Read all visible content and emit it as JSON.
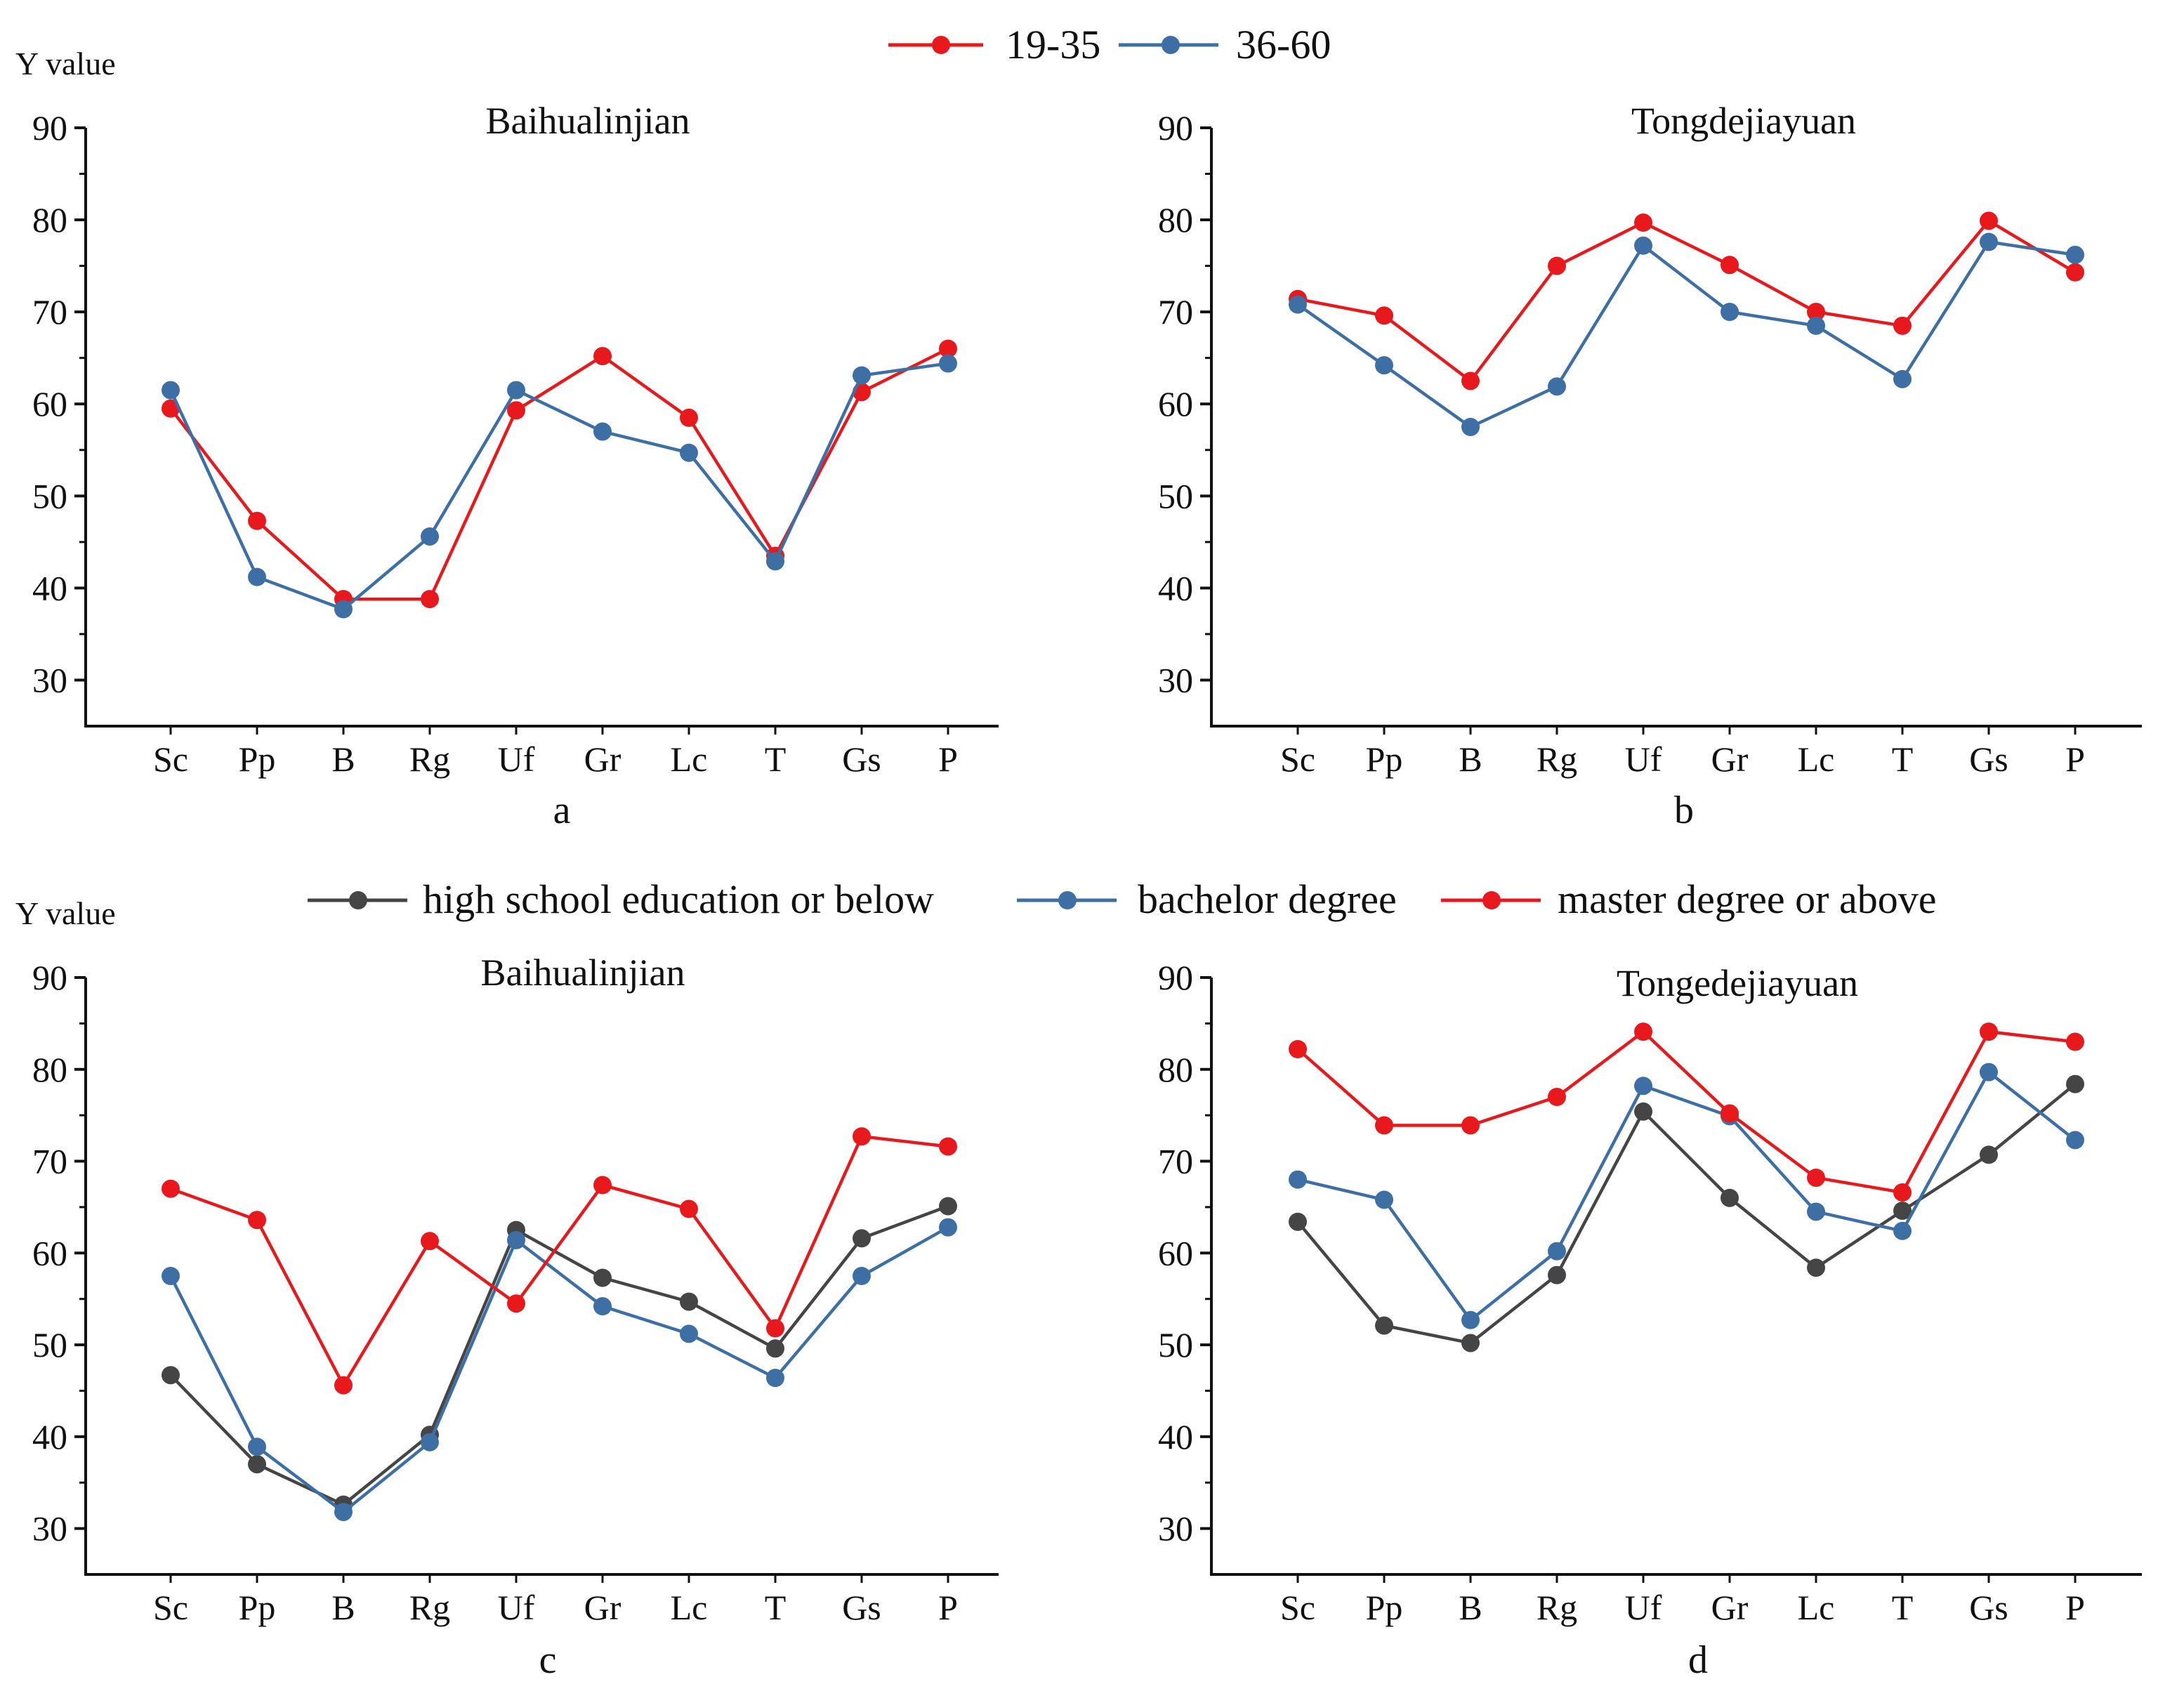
{
  "legends": [
    {
      "series_names": [
        "19-35",
        "36-60"
      ]
    },
    {
      "series_names": [
        "high school education or below",
        "bachelor degree",
        "master degree or above"
      ]
    }
  ],
  "y_axis_labels": [
    "Y value",
    "Y value"
  ],
  "colors": {
    "red": "#e8191d",
    "blue": "#3d6fa5",
    "dark": "#454545"
  },
  "chart_data": [
    {
      "type": "line",
      "title": "Baihualinjian",
      "panel_label": "a",
      "xlabel": "",
      "ylabel": "Y value",
      "ylim": [
        25,
        90
      ],
      "yticks": [
        30,
        40,
        50,
        60,
        70,
        80,
        90
      ],
      "categories": [
        "Sc",
        "Pp",
        "B",
        "Rg",
        "Uf",
        "Gr",
        "Lc",
        "T",
        "Gs",
        "P"
      ],
      "series": [
        {
          "name": "19-35",
          "color": "#e8191d",
          "values": [
            59.5,
            47.3,
            38.8,
            38.8,
            59.3,
            65.2,
            58.5,
            43.5,
            61.3,
            66.0
          ]
        },
        {
          "name": "36-60",
          "color": "#3d6fa5",
          "values": [
            61.5,
            41.2,
            37.7,
            45.6,
            61.5,
            57.0,
            54.7,
            42.9,
            63.1,
            64.4
          ]
        }
      ]
    },
    {
      "type": "line",
      "title": "Tongdejiayuan",
      "panel_label": "b",
      "xlabel": "",
      "ylabel": "",
      "ylim": [
        25,
        90
      ],
      "yticks": [
        30,
        40,
        50,
        60,
        70,
        80,
        90
      ],
      "categories": [
        "Sc",
        "Pp",
        "B",
        "Rg",
        "Uf",
        "Gr",
        "Lc",
        "T",
        "Gs",
        "P"
      ],
      "series": [
        {
          "name": "19-35",
          "color": "#e8191d",
          "values": [
            71.4,
            69.6,
            62.5,
            75.0,
            79.7,
            75.1,
            70.0,
            68.5,
            79.9,
            74.3
          ]
        },
        {
          "name": "36-60",
          "color": "#3d6fa5",
          "values": [
            70.8,
            64.2,
            57.5,
            61.9,
            77.2,
            70.0,
            68.5,
            62.7,
            77.6,
            76.2
          ]
        }
      ]
    },
    {
      "type": "line",
      "title": "Baihualinjian",
      "panel_label": "c",
      "xlabel": "",
      "ylabel": "Y value",
      "ylim": [
        25,
        90
      ],
      "yticks": [
        30,
        40,
        50,
        60,
        70,
        80,
        90
      ],
      "categories": [
        "Sc",
        "Pp",
        "B",
        "Rg",
        "Uf",
        "Gr",
        "Lc",
        "T",
        "Gs",
        "P"
      ],
      "series": [
        {
          "name": "high school education or below",
          "color": "#454545",
          "values": [
            46.7,
            37.0,
            32.6,
            40.2,
            62.5,
            57.3,
            54.7,
            49.6,
            61.6,
            65.1
          ]
        },
        {
          "name": "bachelor degree",
          "color": "#3d6fa5",
          "values": [
            57.5,
            38.9,
            31.8,
            39.4,
            61.4,
            54.2,
            51.2,
            46.4,
            57.5,
            62.8
          ]
        },
        {
          "name": "master degree or above",
          "color": "#e8191d",
          "values": [
            67.0,
            63.6,
            45.6,
            61.3,
            54.5,
            67.4,
            64.8,
            51.8,
            72.7,
            71.6
          ]
        }
      ]
    },
    {
      "type": "line",
      "title": "Tongedejiayuan",
      "panel_label": "d",
      "xlabel": "",
      "ylabel": "",
      "ylim": [
        25,
        90
      ],
      "yticks": [
        30,
        40,
        50,
        60,
        70,
        80,
        90
      ],
      "categories": [
        "Sc",
        "Pp",
        "B",
        "Rg",
        "Uf",
        "Gr",
        "Lc",
        "T",
        "Gs",
        "P"
      ],
      "series": [
        {
          "name": "high school education or below",
          "color": "#454545",
          "values": [
            63.4,
            52.1,
            50.2,
            57.6,
            75.4,
            66.0,
            58.4,
            64.6,
            70.7,
            78.4
          ]
        },
        {
          "name": "bachelor degree",
          "color": "#3d6fa5",
          "values": [
            68.0,
            65.8,
            52.7,
            60.2,
            78.2,
            74.9,
            64.5,
            62.4,
            79.7,
            72.3
          ]
        },
        {
          "name": "master degree or above",
          "color": "#e8191d",
          "values": [
            82.2,
            73.9,
            73.9,
            77.0,
            84.1,
            75.2,
            68.2,
            66.6,
            84.1,
            83.0
          ]
        }
      ]
    }
  ]
}
